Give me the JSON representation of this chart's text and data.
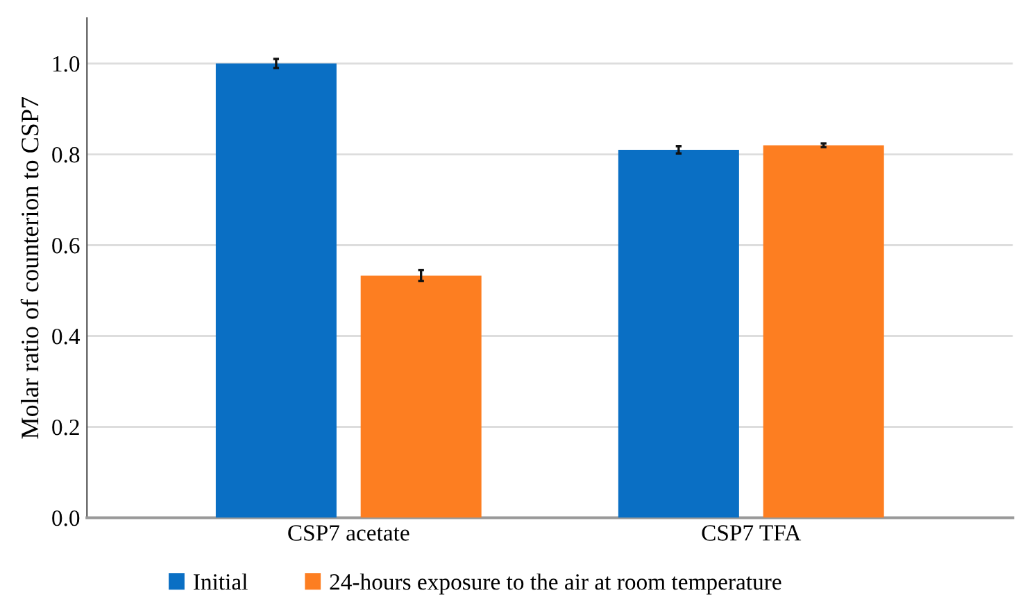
{
  "chart_data": {
    "type": "bar",
    "ylabel": "Molar ratio of counterion to CSP7",
    "categories": [
      "CSP7 acetate",
      "CSP7 TFA"
    ],
    "series": [
      {
        "name": "Initial",
        "color": "#0a6fc4",
        "values": [
          1.0,
          0.81
        ],
        "errors": [
          0.01,
          0.008
        ]
      },
      {
        "name": "24-hours exposure to the air at room temperature",
        "color": "#fd7e21",
        "values": [
          0.533,
          0.82
        ],
        "errors": [
          0.012,
          0.004
        ]
      }
    ],
    "ylim": [
      0,
      1.1
    ],
    "yticks": [
      {
        "value": 0,
        "label": "0.0"
      },
      {
        "value": 0.2,
        "label": "0.2"
      },
      {
        "value": 0.4,
        "label": "0.4"
      },
      {
        "value": 0.6,
        "label": "0.6"
      },
      {
        "value": 0.8,
        "label": "0.8"
      },
      {
        "value": 1.0,
        "label": "1.0"
      }
    ],
    "grid": "y",
    "legend": "bottom"
  }
}
